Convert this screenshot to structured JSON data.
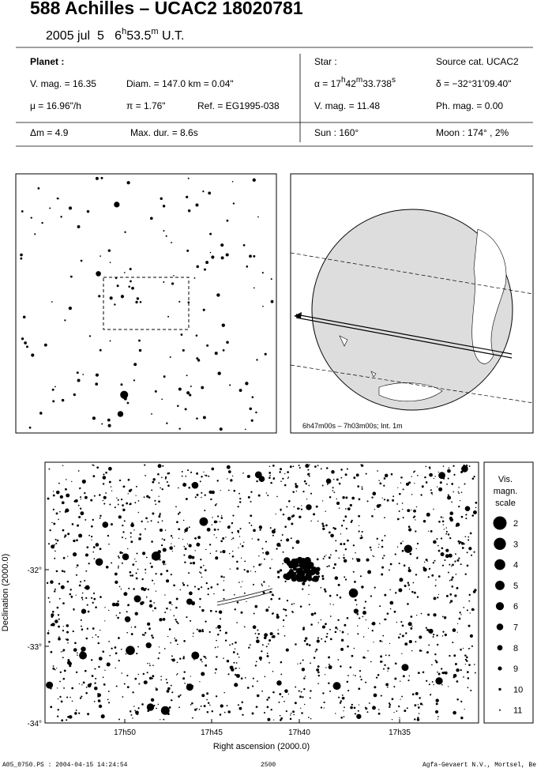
{
  "header": {
    "title": "588 Achilles  –  UCAC2 18020781",
    "date": "2005 jul  5   6",
    "hour_unit": "h",
    "minutes": "53.5",
    "minute_unit": "m",
    "ut": " U.T."
  },
  "planet": {
    "heading": "Planet :",
    "vmag": "V. mag. = 16.35",
    "diam": "Diam. = 147.0 km = 0.04\"",
    "mu": "μ = 16.96\"/h",
    "parallax": "π = 1.76\"",
    "ref": "Ref. = EG1995-038",
    "dm": "Δm = 4.9",
    "maxdur": "Max. dur. = 8.6s"
  },
  "star": {
    "heading": "Star :",
    "source": "Source cat.  UCAC2",
    "alpha": "α = 17",
    "alpha_h": "h",
    "alpha_min": "42",
    "alpha_m": "m",
    "alpha_sec": "33.738",
    "alpha_s": "s",
    "delta": "δ = −32°31'09.40\"",
    "vmag": "V. mag. = 11.48",
    "phmag": "Ph. mag. =  0.00",
    "sun": "Sun : 160°",
    "moon": "Moon : 174° ,  2%"
  },
  "globe": {
    "caption": "6h47m00s –  7h03m00s; Int.  1m"
  },
  "starchart": {
    "ylabel": "Declination (2000.0)",
    "yticks": [
      "-32°",
      "-33°",
      "-34°"
    ],
    "xlabel": "Right ascension (2000.0)",
    "xticks": [
      "17h50",
      "17h45",
      "17h40",
      "17h35"
    ],
    "scale_title": [
      "Vis.",
      "magn.",
      "scale"
    ],
    "scale": [
      2,
      3,
      4,
      5,
      6,
      7,
      8,
      9,
      10,
      11
    ]
  },
  "footer": {
    "file": "A05_0750.PS : 2004-04-15 14:24:54",
    "number": "2500",
    "credit": "Agfa-Gevaert N.V., Mortsel, Belgium"
  }
}
